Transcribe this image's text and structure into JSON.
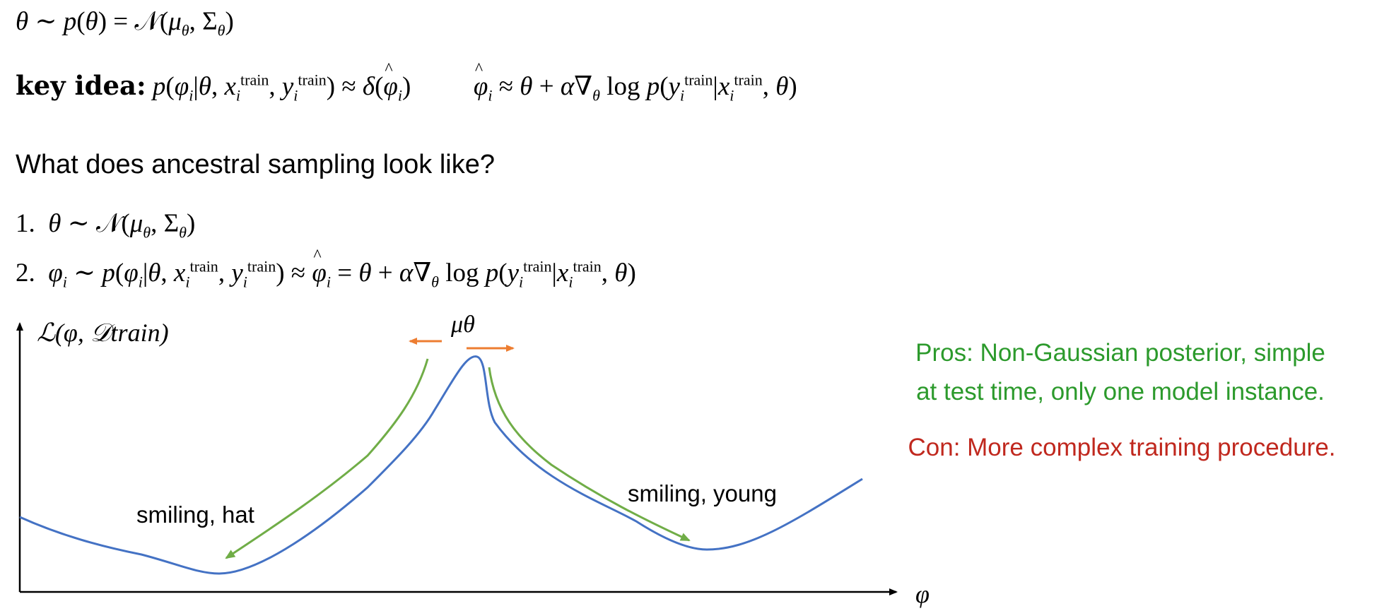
{
  "slide": {
    "prior": "θ ∼ p(θ) = 𝒩(μ_θ, Σ_θ)",
    "key_idea_label": "key idea:",
    "key_idea_eq1": "p(φ_i|θ, x_i^train, y_i^train) ≈ δ(φ̂_i)",
    "key_idea_eq2": "φ̂_i ≈ θ + α∇_θ log p(y_i^train|x_i^train, θ)",
    "heading": "What does ancestral sampling look like?",
    "step1": "1. θ ∼ 𝒩(μ_θ, Σ_θ)",
    "step2": "2. φ_i ∼ p(φ_i|θ, x_i^train, y_i^train) ≈ φ̂_i = θ + α∇_θ log p(y_i^train|x_i^train, θ)"
  },
  "diagram": {
    "y_axis_label": "ℒ(φ, 𝒟train)",
    "x_axis_label": "φ",
    "peak_label": "μθ",
    "left_mode_label": "smiling, hat",
    "right_mode_label": "smiling, young",
    "colors": {
      "curve": "#4472c4",
      "descent_arrow": "#70ad47",
      "peak_arrow": "#ed7d31"
    }
  },
  "notes": {
    "pros_label": "Pros",
    "pros_text": ": Non-Gaussian posterior, simple",
    "pros_text2": "at test time, only one model instance.",
    "cons_label": "Con",
    "cons_text": ": More complex training procedure."
  }
}
